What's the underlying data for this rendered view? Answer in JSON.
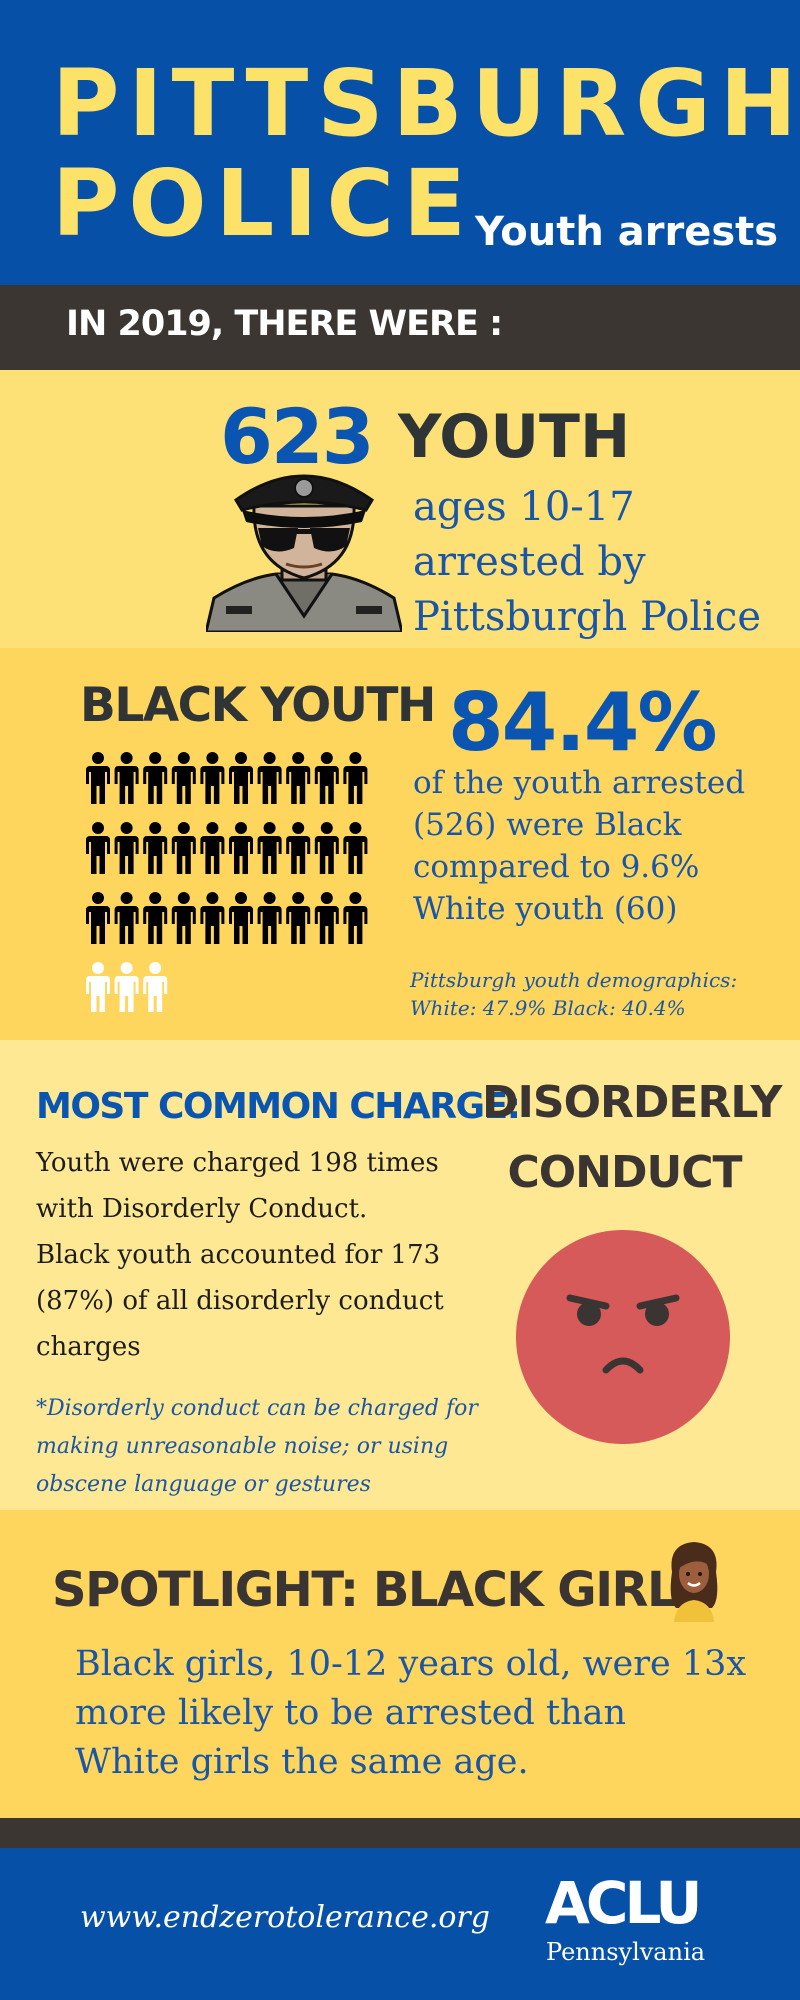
{
  "header": {
    "title_line1": "PITTSBURGH",
    "title_line2": "POLICE",
    "subtitle": "Youth arrests"
  },
  "band": {
    "text": "IN 2019, THERE WERE :"
  },
  "section1": {
    "count": "623",
    "heading": "YOUTH",
    "lines": [
      "ages 10-17",
      "arrested by",
      "Pittsburgh Police"
    ]
  },
  "section2": {
    "heading": "BLACK YOUTH",
    "percent": "84.4%",
    "lines": [
      "of the youth arrested",
      "(526) were Black",
      "compared to 9.6%",
      "White youth (60)"
    ],
    "demographics_lines": [
      "Pittsburgh youth demographics:",
      "White: 47.9% Black: 40.4%"
    ],
    "pictogram": {
      "black_icons": 30,
      "white_icons": 3,
      "black_color": "#000000",
      "white_color": "#ffffff"
    }
  },
  "section3": {
    "heading": "MOST COMMON CHARGE:",
    "body_lines": [
      "Youth were charged 198 times",
      "with Disorderly Conduct.",
      "Black youth accounted for 173",
      "(87%) of all disorderly conduct",
      "charges"
    ],
    "footnote_lines": [
      "*Disorderly conduct can be charged for",
      "making unreasonable noise; or using",
      "obscene language or gestures"
    ],
    "charge_lines": [
      "DISORDERLY",
      "CONDUCT"
    ]
  },
  "section4": {
    "heading": "SPOTLIGHT: BLACK GIRLS",
    "lines": [
      "Black girls, 10-12 years old, were 13x",
      "more likely to be arrested than",
      "White girls the same age."
    ]
  },
  "footer": {
    "url": "www.endzerotolerance.org",
    "logo": "ACLU",
    "logo_sub": "Pennsylvania"
  },
  "colors": {
    "blue": "#0750a8",
    "yellow_title": "#fde26a",
    "dark_band": "#3c3633",
    "section_light": "#fde176",
    "section_mid": "#fed65e",
    "section_pale": "#fee893",
    "stat_blue": "#0a55b2",
    "angry_face": "#d65a59"
  },
  "icons": [
    "police-officer-icon",
    "person-icon",
    "angry-face-icon",
    "girl-emoji-icon",
    "aclu-logo"
  ]
}
